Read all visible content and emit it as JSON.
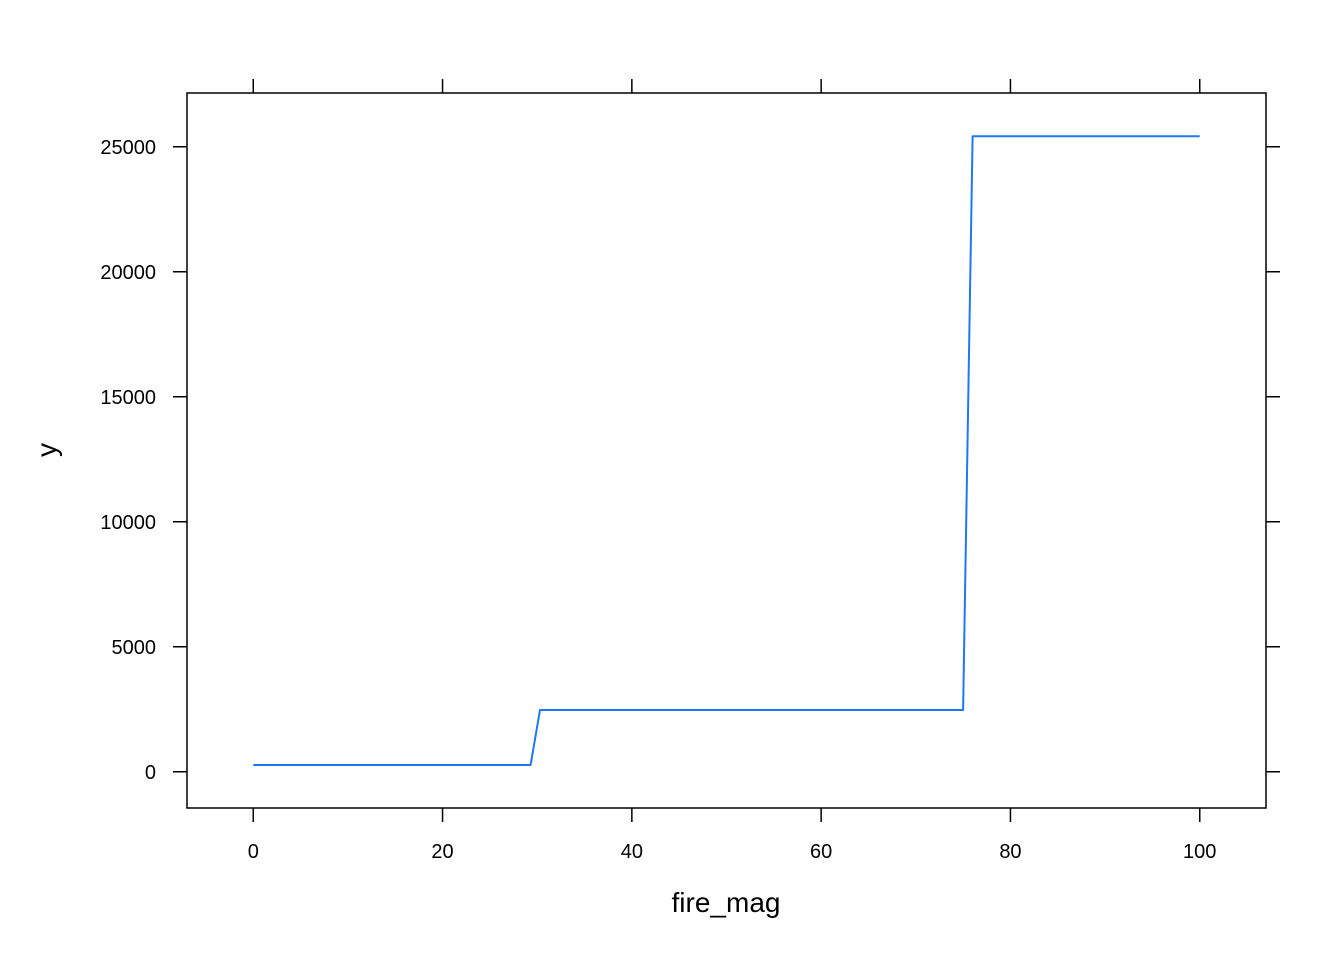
{
  "chart_data": {
    "type": "line",
    "title": "",
    "xlabel": "fire_mag",
    "ylabel": "y",
    "xlim": [
      -7,
      107
    ],
    "ylim": [
      -1450,
      27150
    ],
    "xticks": [
      0,
      20,
      40,
      60,
      80,
      100
    ],
    "yticks": [
      0,
      5000,
      10000,
      15000,
      20000,
      25000
    ],
    "grid": false,
    "legend": "none",
    "series": [
      {
        "color": "#1f77f4",
        "x": [
          0,
          29.3,
          30.3,
          75,
          76,
          100
        ],
        "y": [
          270,
          270,
          2470,
          2470,
          25420,
          25420
        ]
      }
    ]
  }
}
